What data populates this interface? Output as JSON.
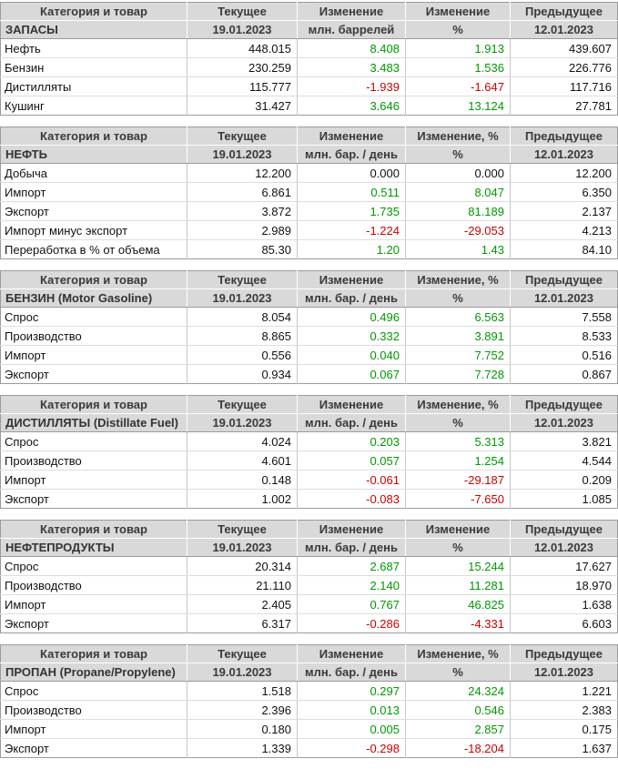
{
  "meta": {
    "current_date": "19.01.2023",
    "previous_date": "12.01.2023"
  },
  "colors": {
    "positive_value": "#009900",
    "negative_value": "#cc0000",
    "neutral_value": "#111111",
    "header_background": "#d9d9d9",
    "header_text": "#3a3a3a"
  },
  "tables": [
    {
      "id": "zapasy",
      "headers": [
        "Категория и товар",
        "Текущее",
        "Изменение",
        "Изменение",
        "Предыдущее"
      ],
      "subheaders": [
        "ЗАПАСЫ",
        "19.01.2023",
        "млн. баррелей",
        "%",
        "12.01.2023"
      ],
      "rows": [
        {
          "label": "Нефть",
          "current": "448.015",
          "change": "8.408",
          "change_pct": "1.913",
          "previous": "439.607",
          "trend": "up"
        },
        {
          "label": "Бензин",
          "current": "230.259",
          "change": "3.483",
          "change_pct": "1.536",
          "previous": "226.776",
          "trend": "up"
        },
        {
          "label": "Дистилляты",
          "current": "115.777",
          "change": "-1.939",
          "change_pct": "-1.647",
          "previous": "117.716",
          "trend": "down"
        },
        {
          "label": "Кушинг",
          "current": "31.427",
          "change": "3.646",
          "change_pct": "13.124",
          "previous": "27.781",
          "trend": "up"
        }
      ]
    },
    {
      "id": "neft",
      "headers": [
        "Категория и товар",
        "Текущее",
        "Изменение",
        "Изменение, %",
        "Предыдущее"
      ],
      "subheaders": [
        "НЕФТЬ",
        "19.01.2023",
        "млн. бар. / день",
        "%",
        "12.01.2023"
      ],
      "rows": [
        {
          "label": "Добыча",
          "current": "12.200",
          "change": "0.000",
          "change_pct": "0.000",
          "previous": "12.200",
          "trend": "flat"
        },
        {
          "label": "Импорт",
          "current": "6.861",
          "change": "0.511",
          "change_pct": "8.047",
          "previous": "6.350",
          "trend": "up"
        },
        {
          "label": "Экспорт",
          "current": "3.872",
          "change": "1.735",
          "change_pct": "81.189",
          "previous": "2.137",
          "trend": "up"
        },
        {
          "label": "Импорт минус экспорт",
          "current": "2.989",
          "change": "-1.224",
          "change_pct": "-29.053",
          "previous": "4.213",
          "trend": "down"
        },
        {
          "label": "Переработка в % от объема",
          "current": "85.30",
          "change": "1.20",
          "change_pct": "1.43",
          "previous": "84.10",
          "trend": "up"
        }
      ]
    },
    {
      "id": "benzin",
      "headers": [
        "Категория и товар",
        "Текущее",
        "Изменение",
        "Изменение, %",
        "Предыдущее"
      ],
      "subheaders": [
        "БЕНЗИН (Motor Gasoline)",
        "19.01.2023",
        "млн. бар. / день",
        "%",
        "12.01.2023"
      ],
      "rows": [
        {
          "label": "Спрос",
          "current": "8.054",
          "change": "0.496",
          "change_pct": "6.563",
          "previous": "7.558",
          "trend": "up"
        },
        {
          "label": "Производство",
          "current": "8.865",
          "change": "0.332",
          "change_pct": "3.891",
          "previous": "8.533",
          "trend": "up"
        },
        {
          "label": "Импорт",
          "current": "0.556",
          "change": "0.040",
          "change_pct": "7.752",
          "previous": "0.516",
          "trend": "up"
        },
        {
          "label": "Экспорт",
          "current": "0.934",
          "change": "0.067",
          "change_pct": "7.728",
          "previous": "0.867",
          "trend": "up"
        }
      ]
    },
    {
      "id": "distillyaty",
      "headers": [
        "Категория и товар",
        "Текущее",
        "Изменение",
        "Изменение, %",
        "Предыдущее"
      ],
      "subheaders": [
        "ДИСТИЛЛЯТЫ (Distillate Fuel)",
        "19.01.2023",
        "млн. бар. / день",
        "%",
        "12.01.2023"
      ],
      "rows": [
        {
          "label": "Спрос",
          "current": "4.024",
          "change": "0.203",
          "change_pct": "5.313",
          "previous": "3.821",
          "trend": "up"
        },
        {
          "label": "Производство",
          "current": "4.601",
          "change": "0.057",
          "change_pct": "1.254",
          "previous": "4.544",
          "trend": "up"
        },
        {
          "label": "Импорт",
          "current": "0.148",
          "change": "-0.061",
          "change_pct": "-29.187",
          "previous": "0.209",
          "trend": "down"
        },
        {
          "label": "Экспорт",
          "current": "1.002",
          "change": "-0.083",
          "change_pct": "-7.650",
          "previous": "1.085",
          "trend": "down"
        }
      ]
    },
    {
      "id": "nefteprodukty",
      "headers": [
        "Категория и товар",
        "Текущее",
        "Изменение",
        "Изменение",
        "Предыдущее"
      ],
      "subheaders": [
        "НЕФТЕПРОДУКТЫ",
        "19.01.2023",
        "млн. бар. / день",
        "%",
        "12.01.2023"
      ],
      "rows": [
        {
          "label": "Спрос",
          "current": "20.314",
          "change": "2.687",
          "change_pct": "15.244",
          "previous": "17.627",
          "trend": "up"
        },
        {
          "label": "Производство",
          "current": "21.110",
          "change": "2.140",
          "change_pct": "11.281",
          "previous": "18.970",
          "trend": "up"
        },
        {
          "label": "Импорт",
          "current": "2.405",
          "change": "0.767",
          "change_pct": "46.825",
          "previous": "1.638",
          "trend": "up"
        },
        {
          "label": "Экспорт",
          "current": "6.317",
          "change": "-0.286",
          "change_pct": "-4.331",
          "previous": "6.603",
          "trend": "down"
        }
      ]
    },
    {
      "id": "propan",
      "headers": [
        "Категория и товар",
        "Текущее",
        "Изменение",
        "Изменение, %",
        "Предыдущее"
      ],
      "subheaders": [
        "ПРОПАН (Propane/Propylene)",
        "19.01.2023",
        "млн. бар. / день",
        "%",
        "12.01.2023"
      ],
      "rows": [
        {
          "label": "Спрос",
          "current": "1.518",
          "change": "0.297",
          "change_pct": "24.324",
          "previous": "1.221",
          "trend": "up"
        },
        {
          "label": "Производство",
          "current": "2.396",
          "change": "0.013",
          "change_pct": "0.546",
          "previous": "2.383",
          "trend": "up"
        },
        {
          "label": "Импорт",
          "current": "0.180",
          "change": "0.005",
          "change_pct": "2.857",
          "previous": "0.175",
          "trend": "up"
        },
        {
          "label": "Экспорт",
          "current": "1.339",
          "change": "-0.298",
          "change_pct": "-18.204",
          "previous": "1.637",
          "trend": "down"
        }
      ]
    }
  ]
}
